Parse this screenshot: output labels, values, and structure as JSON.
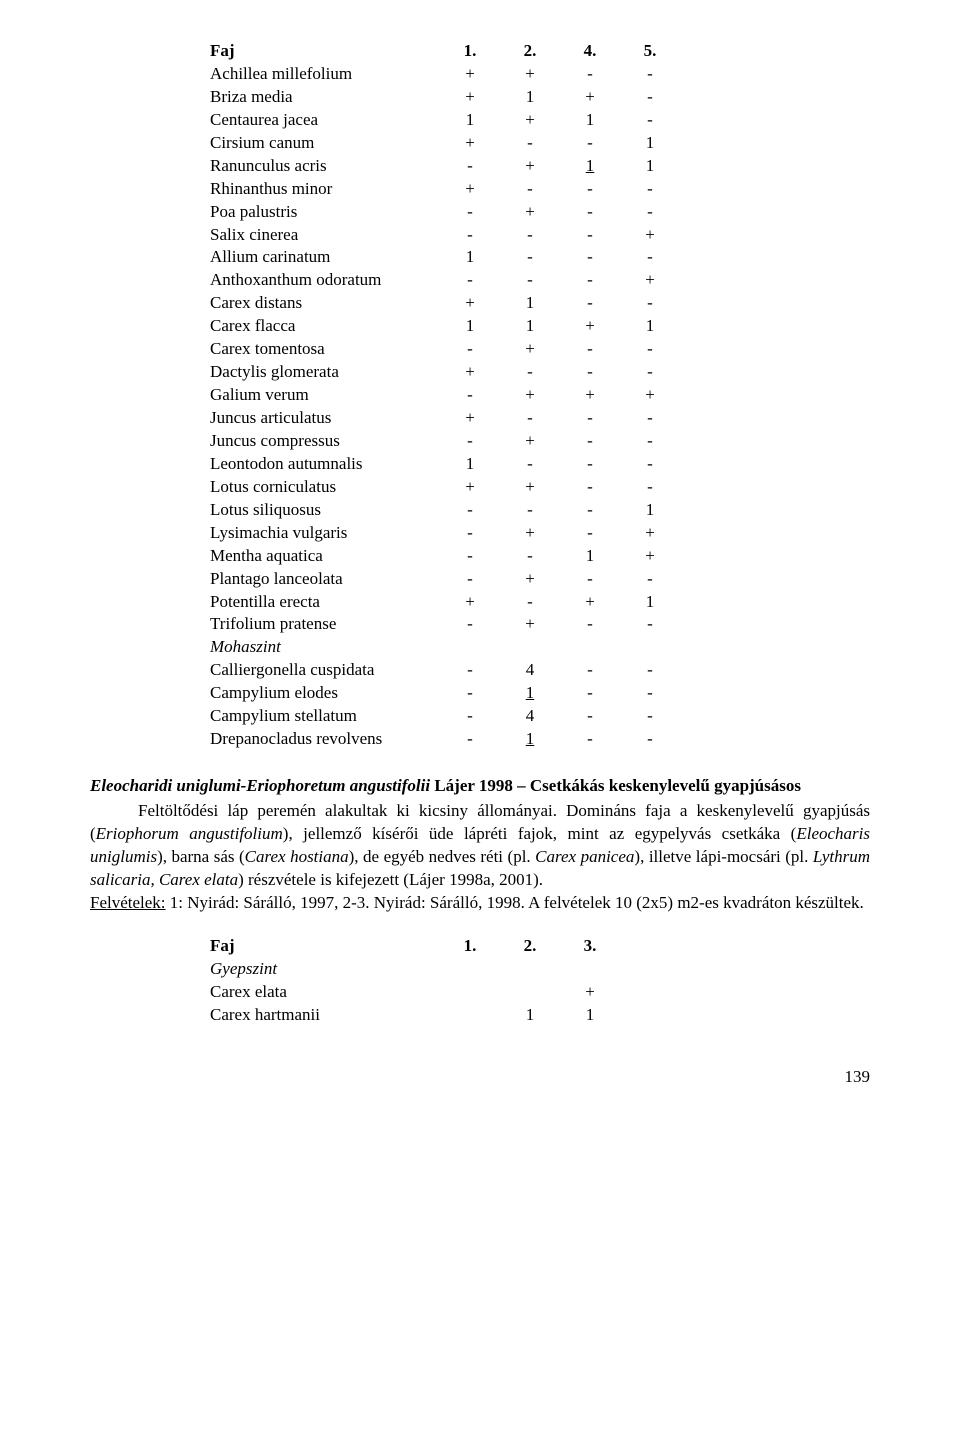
{
  "table1": {
    "header": {
      "name": "Faj",
      "cols": [
        "1.",
        "2.",
        "4.",
        "5."
      ]
    },
    "rows": [
      {
        "name": "Achillea millefolium",
        "vals": [
          "+",
          "+",
          "-",
          "-"
        ]
      },
      {
        "name": "Briza media",
        "vals": [
          "+",
          "1",
          "+",
          "-"
        ]
      },
      {
        "name": "Centaurea jacea",
        "vals": [
          "1",
          "+",
          "1",
          "-"
        ]
      },
      {
        "name": "Cirsium canum",
        "vals": [
          "+",
          "-",
          "-",
          "1"
        ]
      },
      {
        "name": "Ranunculus acris",
        "vals": [
          "-",
          "+",
          "1",
          "1"
        ],
        "underline": [
          2
        ]
      },
      {
        "name": "Rhinanthus minor",
        "vals": [
          "+",
          "-",
          "-",
          "-"
        ]
      },
      {
        "name": "Poa palustris",
        "vals": [
          "-",
          "+",
          "-",
          "-"
        ]
      },
      {
        "name": "Salix cinerea",
        "vals": [
          "-",
          "-",
          "-",
          "+"
        ]
      },
      {
        "name": "Allium carinatum",
        "vals": [
          "1",
          "-",
          "-",
          "-"
        ]
      },
      {
        "name": "Anthoxanthum odoratum",
        "vals": [
          "-",
          "-",
          "-",
          "+"
        ]
      },
      {
        "name": "Carex distans",
        "vals": [
          "+",
          "1",
          "-",
          "-"
        ]
      },
      {
        "name": "Carex flacca",
        "vals": [
          "1",
          "1",
          "+",
          "1"
        ]
      },
      {
        "name": "Carex tomentosa",
        "vals": [
          "-",
          "+",
          "-",
          "-"
        ]
      },
      {
        "name": "Dactylis glomerata",
        "vals": [
          "+",
          "-",
          "-",
          "-"
        ]
      },
      {
        "name": "Galium verum",
        "vals": [
          "-",
          "+",
          "+",
          "+"
        ]
      },
      {
        "name": "Juncus articulatus",
        "vals": [
          "+",
          "-",
          "-",
          "-"
        ]
      },
      {
        "name": "Juncus compressus",
        "vals": [
          "-",
          "+",
          "-",
          "-"
        ]
      },
      {
        "name": "Leontodon autumnalis",
        "vals": [
          "1",
          "-",
          "-",
          "-"
        ]
      },
      {
        "name": "Lotus corniculatus",
        "vals": [
          "+",
          "+",
          "-",
          "-"
        ]
      },
      {
        "name": "Lotus siliquosus",
        "vals": [
          "-",
          "-",
          "-",
          "1"
        ]
      },
      {
        "name": "Lysimachia vulgaris",
        "vals": [
          "-",
          "+",
          "-",
          "+"
        ]
      },
      {
        "name": "Mentha aquatica",
        "vals": [
          "-",
          "-",
          "1",
          "+"
        ]
      },
      {
        "name": "Plantago lanceolata",
        "vals": [
          "-",
          "+",
          "-",
          "-"
        ]
      },
      {
        "name": "Potentilla erecta",
        "vals": [
          "+",
          "-",
          "+",
          "1"
        ]
      },
      {
        "name": "Trifolium pratense",
        "vals": [
          "-",
          "+",
          "-",
          "-"
        ]
      },
      {
        "name": "Mohaszint",
        "italic": true,
        "vals": [
          "",
          "",
          "",
          ""
        ]
      },
      {
        "name": "Calliergonella cuspidata",
        "vals": [
          "-",
          "4",
          "-",
          "-"
        ]
      },
      {
        "name": "Campylium elodes",
        "vals": [
          "-",
          "1",
          "-",
          "-"
        ],
        "underline": [
          1
        ]
      },
      {
        "name": "Campylium stellatum",
        "vals": [
          "-",
          "4",
          "-",
          "-"
        ]
      },
      {
        "name": "Drepanocladus revolvens",
        "vals": [
          "-",
          "1",
          "-",
          "-"
        ],
        "underline": [
          1
        ]
      }
    ]
  },
  "section": {
    "title_latin": "Eleocharidi uniglumi-Eriophoretum angustifolii",
    "title_rest": " Lájer 1998 – Csetkákás keskenylevelű gyapjúsásos",
    "p1a": "Feltöltődési láp peremén alakultak ki kicsiny állományai. Domináns faja a keskenylevelű gyapjúsás (",
    "p1b": "Eriophorum angustifolium",
    "p1c": "), jellemző kísérői üde lápréti fajok, mint az egypelyvás csetkáka (",
    "p1d": "Eleocharis uniglumis",
    "p1e": "), barna sás (",
    "p1f": "Carex hostiana",
    "p1g": "), de egyéb nedves réti (pl. ",
    "p1h": "Carex panicea",
    "p1i": "), illetve lápi-mocsári (pl. ",
    "p1j": "Lythrum salicaria, Carex elata",
    "p1k": ") részvétele is kifejezett (Lájer 1998a, 2001).",
    "p2_label": "Felvételek:",
    "p2_rest": " 1: Nyirád: Sárálló, 1997, 2-3. Nyirád: Sárálló, 1998. A felvételek 10 (2x5) m2-es kvadráton készültek."
  },
  "table2": {
    "header": {
      "name": "Faj",
      "cols": [
        "1.",
        "2.",
        "3."
      ]
    },
    "rows": [
      {
        "name": "Gyepszint",
        "italic": true,
        "vals": [
          "",
          "",
          ""
        ]
      },
      {
        "name": "Carex elata",
        "vals": [
          "",
          "",
          "+"
        ]
      },
      {
        "name": "Carex hartmanii",
        "vals": [
          "",
          "1",
          "1"
        ]
      }
    ]
  },
  "page_number": "139"
}
